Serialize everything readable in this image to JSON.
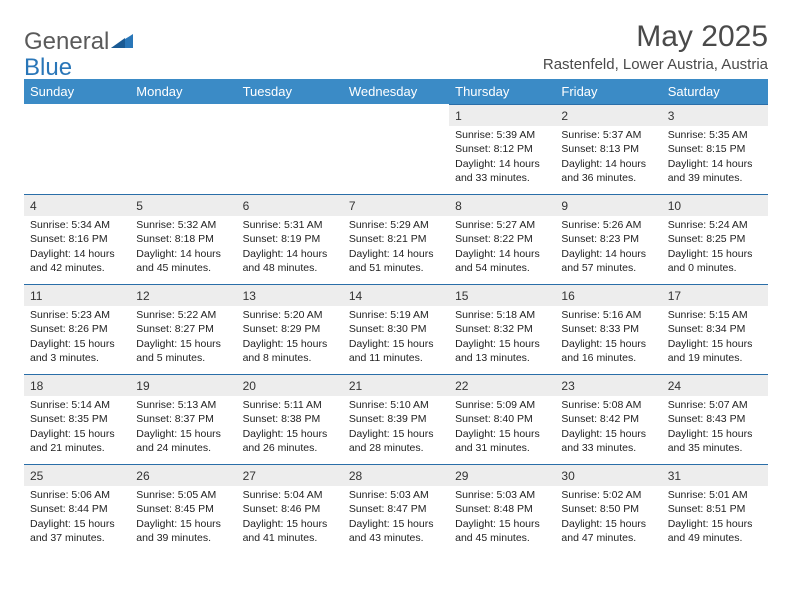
{
  "logo": {
    "text1": "General",
    "text2": "Blue"
  },
  "title": "May 2025",
  "location": "Rastenfeld, Lower Austria, Austria",
  "colors": {
    "header_bg": "#3b8bc6",
    "header_text": "#ffffff",
    "daynum_bg": "#ededed",
    "daynum_border": "#2a6ea8",
    "logo_gray": "#5a5a5a",
    "logo_blue": "#2976b8",
    "text": "#222222",
    "background": "#ffffff"
  },
  "weekdays": [
    "Sunday",
    "Monday",
    "Tuesday",
    "Wednesday",
    "Thursday",
    "Friday",
    "Saturday"
  ],
  "weeks": [
    [
      null,
      null,
      null,
      null,
      {
        "n": "1",
        "sr": "Sunrise: 5:39 AM",
        "ss": "Sunset: 8:12 PM",
        "dl1": "Daylight: 14 hours",
        "dl2": "and 33 minutes."
      },
      {
        "n": "2",
        "sr": "Sunrise: 5:37 AM",
        "ss": "Sunset: 8:13 PM",
        "dl1": "Daylight: 14 hours",
        "dl2": "and 36 minutes."
      },
      {
        "n": "3",
        "sr": "Sunrise: 5:35 AM",
        "ss": "Sunset: 8:15 PM",
        "dl1": "Daylight: 14 hours",
        "dl2": "and 39 minutes."
      }
    ],
    [
      {
        "n": "4",
        "sr": "Sunrise: 5:34 AM",
        "ss": "Sunset: 8:16 PM",
        "dl1": "Daylight: 14 hours",
        "dl2": "and 42 minutes."
      },
      {
        "n": "5",
        "sr": "Sunrise: 5:32 AM",
        "ss": "Sunset: 8:18 PM",
        "dl1": "Daylight: 14 hours",
        "dl2": "and 45 minutes."
      },
      {
        "n": "6",
        "sr": "Sunrise: 5:31 AM",
        "ss": "Sunset: 8:19 PM",
        "dl1": "Daylight: 14 hours",
        "dl2": "and 48 minutes."
      },
      {
        "n": "7",
        "sr": "Sunrise: 5:29 AM",
        "ss": "Sunset: 8:21 PM",
        "dl1": "Daylight: 14 hours",
        "dl2": "and 51 minutes."
      },
      {
        "n": "8",
        "sr": "Sunrise: 5:27 AM",
        "ss": "Sunset: 8:22 PM",
        "dl1": "Daylight: 14 hours",
        "dl2": "and 54 minutes."
      },
      {
        "n": "9",
        "sr": "Sunrise: 5:26 AM",
        "ss": "Sunset: 8:23 PM",
        "dl1": "Daylight: 14 hours",
        "dl2": "and 57 minutes."
      },
      {
        "n": "10",
        "sr": "Sunrise: 5:24 AM",
        "ss": "Sunset: 8:25 PM",
        "dl1": "Daylight: 15 hours",
        "dl2": "and 0 minutes."
      }
    ],
    [
      {
        "n": "11",
        "sr": "Sunrise: 5:23 AM",
        "ss": "Sunset: 8:26 PM",
        "dl1": "Daylight: 15 hours",
        "dl2": "and 3 minutes."
      },
      {
        "n": "12",
        "sr": "Sunrise: 5:22 AM",
        "ss": "Sunset: 8:27 PM",
        "dl1": "Daylight: 15 hours",
        "dl2": "and 5 minutes."
      },
      {
        "n": "13",
        "sr": "Sunrise: 5:20 AM",
        "ss": "Sunset: 8:29 PM",
        "dl1": "Daylight: 15 hours",
        "dl2": "and 8 minutes."
      },
      {
        "n": "14",
        "sr": "Sunrise: 5:19 AM",
        "ss": "Sunset: 8:30 PM",
        "dl1": "Daylight: 15 hours",
        "dl2": "and 11 minutes."
      },
      {
        "n": "15",
        "sr": "Sunrise: 5:18 AM",
        "ss": "Sunset: 8:32 PM",
        "dl1": "Daylight: 15 hours",
        "dl2": "and 13 minutes."
      },
      {
        "n": "16",
        "sr": "Sunrise: 5:16 AM",
        "ss": "Sunset: 8:33 PM",
        "dl1": "Daylight: 15 hours",
        "dl2": "and 16 minutes."
      },
      {
        "n": "17",
        "sr": "Sunrise: 5:15 AM",
        "ss": "Sunset: 8:34 PM",
        "dl1": "Daylight: 15 hours",
        "dl2": "and 19 minutes."
      }
    ],
    [
      {
        "n": "18",
        "sr": "Sunrise: 5:14 AM",
        "ss": "Sunset: 8:35 PM",
        "dl1": "Daylight: 15 hours",
        "dl2": "and 21 minutes."
      },
      {
        "n": "19",
        "sr": "Sunrise: 5:13 AM",
        "ss": "Sunset: 8:37 PM",
        "dl1": "Daylight: 15 hours",
        "dl2": "and 24 minutes."
      },
      {
        "n": "20",
        "sr": "Sunrise: 5:11 AM",
        "ss": "Sunset: 8:38 PM",
        "dl1": "Daylight: 15 hours",
        "dl2": "and 26 minutes."
      },
      {
        "n": "21",
        "sr": "Sunrise: 5:10 AM",
        "ss": "Sunset: 8:39 PM",
        "dl1": "Daylight: 15 hours",
        "dl2": "and 28 minutes."
      },
      {
        "n": "22",
        "sr": "Sunrise: 5:09 AM",
        "ss": "Sunset: 8:40 PM",
        "dl1": "Daylight: 15 hours",
        "dl2": "and 31 minutes."
      },
      {
        "n": "23",
        "sr": "Sunrise: 5:08 AM",
        "ss": "Sunset: 8:42 PM",
        "dl1": "Daylight: 15 hours",
        "dl2": "and 33 minutes."
      },
      {
        "n": "24",
        "sr": "Sunrise: 5:07 AM",
        "ss": "Sunset: 8:43 PM",
        "dl1": "Daylight: 15 hours",
        "dl2": "and 35 minutes."
      }
    ],
    [
      {
        "n": "25",
        "sr": "Sunrise: 5:06 AM",
        "ss": "Sunset: 8:44 PM",
        "dl1": "Daylight: 15 hours",
        "dl2": "and 37 minutes."
      },
      {
        "n": "26",
        "sr": "Sunrise: 5:05 AM",
        "ss": "Sunset: 8:45 PM",
        "dl1": "Daylight: 15 hours",
        "dl2": "and 39 minutes."
      },
      {
        "n": "27",
        "sr": "Sunrise: 5:04 AM",
        "ss": "Sunset: 8:46 PM",
        "dl1": "Daylight: 15 hours",
        "dl2": "and 41 minutes."
      },
      {
        "n": "28",
        "sr": "Sunrise: 5:03 AM",
        "ss": "Sunset: 8:47 PM",
        "dl1": "Daylight: 15 hours",
        "dl2": "and 43 minutes."
      },
      {
        "n": "29",
        "sr": "Sunrise: 5:03 AM",
        "ss": "Sunset: 8:48 PM",
        "dl1": "Daylight: 15 hours",
        "dl2": "and 45 minutes."
      },
      {
        "n": "30",
        "sr": "Sunrise: 5:02 AM",
        "ss": "Sunset: 8:50 PM",
        "dl1": "Daylight: 15 hours",
        "dl2": "and 47 minutes."
      },
      {
        "n": "31",
        "sr": "Sunrise: 5:01 AM",
        "ss": "Sunset: 8:51 PM",
        "dl1": "Daylight: 15 hours",
        "dl2": "and 49 minutes."
      }
    ]
  ]
}
